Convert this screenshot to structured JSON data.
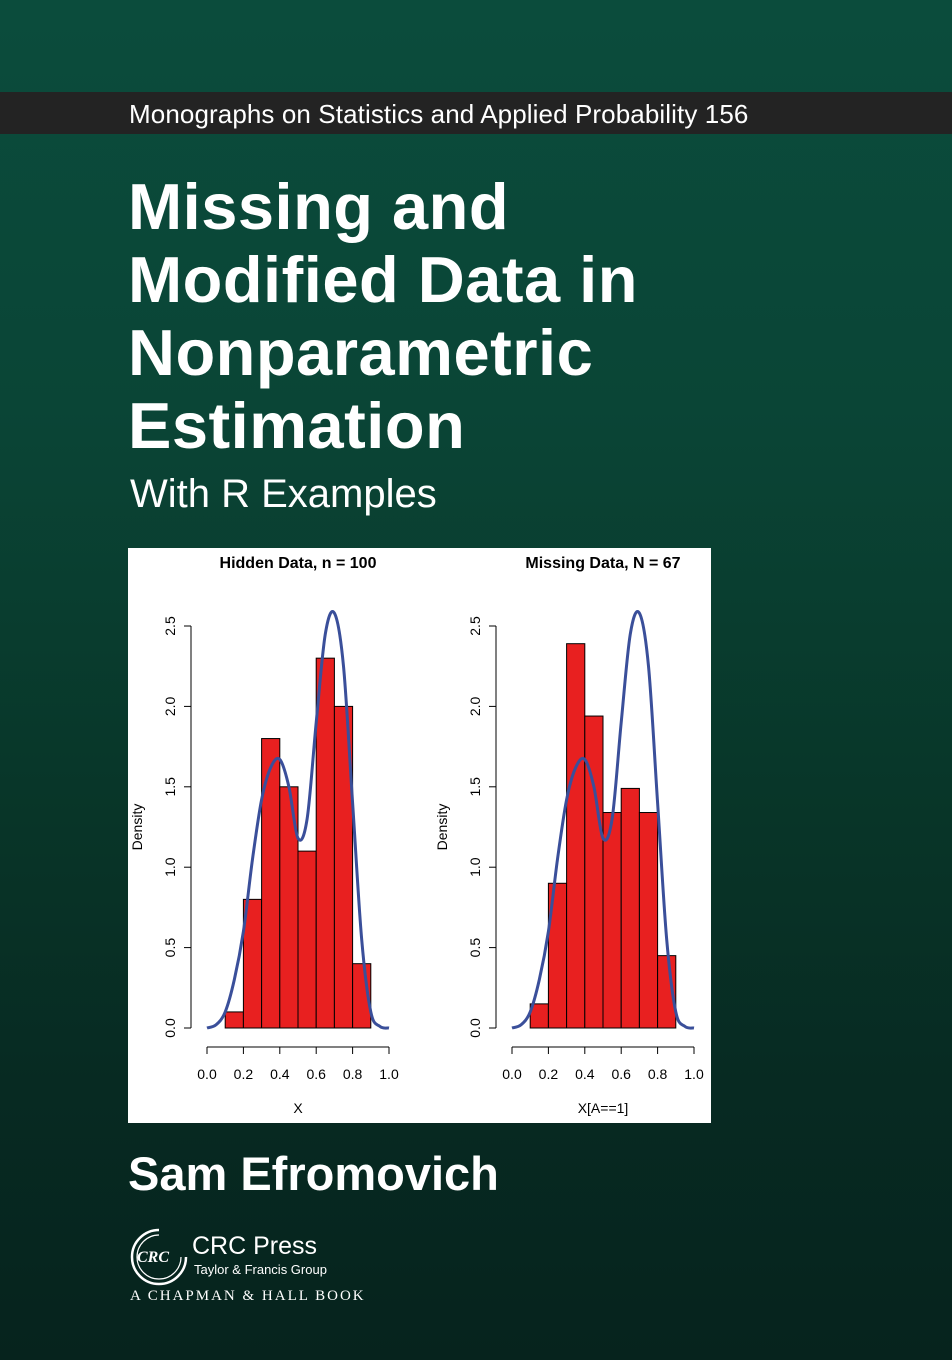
{
  "series": "Monographs on Statistics and Applied Probability 156",
  "title_lines": [
    "Missing and",
    "Modified Data in",
    "Nonparametric",
    "Estimation"
  ],
  "subtitle": "With R Examples",
  "author": "Sam Efromovich",
  "publisher": {
    "name": "CRC Press",
    "group": "Taylor & Francis Group",
    "imprint": "A CHAPMAN & HALL BOOK",
    "logo_text": "CRC"
  },
  "colors": {
    "background": "#0a4536",
    "band": "#232323",
    "bar_fill": "#e82020",
    "curve": "#3a4f9a"
  },
  "chart_data": [
    {
      "type": "bar",
      "title": "Hidden Data,  n  =  100",
      "xlabel": "X",
      "ylabel": "Density",
      "xlim": [
        0.0,
        1.0
      ],
      "ylim": [
        0.0,
        2.5
      ],
      "x_ticks": [
        "0.0",
        "0.2",
        "0.4",
        "0.6",
        "0.8",
        "1.0"
      ],
      "y_ticks": [
        "0.0",
        "0.5",
        "1.0",
        "1.5",
        "2.0",
        "2.5"
      ],
      "bin_edges": [
        0.1,
        0.2,
        0.3,
        0.4,
        0.5,
        0.6,
        0.7,
        0.8,
        0.9
      ],
      "values": [
        0.1,
        0.8,
        1.8,
        1.5,
        1.1,
        2.3,
        2.0,
        0.4
      ],
      "curve": {
        "x": [
          0.0,
          0.05,
          0.1,
          0.15,
          0.2,
          0.25,
          0.3,
          0.35,
          0.4,
          0.45,
          0.5,
          0.55,
          0.6,
          0.65,
          0.7,
          0.75,
          0.8,
          0.85,
          0.9,
          0.95,
          1.0
        ],
        "y": [
          0.0,
          0.02,
          0.1,
          0.3,
          0.6,
          1.05,
          1.42,
          1.62,
          1.67,
          1.5,
          1.18,
          1.3,
          1.9,
          2.45,
          2.58,
          2.25,
          1.4,
          0.55,
          0.1,
          0.01,
          0.0
        ]
      }
    },
    {
      "type": "bar",
      "title": "Missing Data,  N  =  67",
      "xlabel": "X[A==1]",
      "ylabel": "Density",
      "xlim": [
        0.0,
        1.0
      ],
      "ylim": [
        0.0,
        2.5
      ],
      "x_ticks": [
        "0.0",
        "0.2",
        "0.4",
        "0.6",
        "0.8",
        "1.0"
      ],
      "y_ticks": [
        "0.0",
        "0.5",
        "1.0",
        "1.5",
        "2.0",
        "2.5"
      ],
      "bin_edges": [
        0.1,
        0.2,
        0.3,
        0.4,
        0.5,
        0.6,
        0.7,
        0.8,
        0.9
      ],
      "values": [
        0.15,
        0.9,
        2.39,
        1.94,
        1.34,
        1.49,
        1.34,
        0.45
      ],
      "curve": {
        "x": [
          0.0,
          0.05,
          0.1,
          0.15,
          0.2,
          0.25,
          0.3,
          0.35,
          0.4,
          0.45,
          0.5,
          0.55,
          0.6,
          0.65,
          0.7,
          0.75,
          0.8,
          0.85,
          0.9,
          0.95,
          1.0
        ],
        "y": [
          0.0,
          0.02,
          0.1,
          0.3,
          0.6,
          1.05,
          1.42,
          1.62,
          1.67,
          1.5,
          1.18,
          1.3,
          1.9,
          2.45,
          2.58,
          2.25,
          1.4,
          0.55,
          0.1,
          0.01,
          0.0
        ]
      }
    }
  ]
}
